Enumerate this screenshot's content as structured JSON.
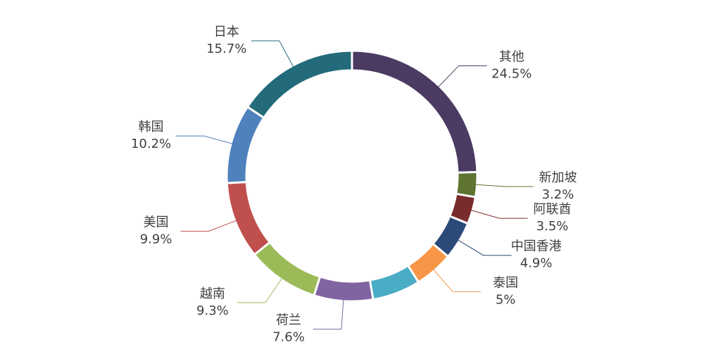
{
  "chart_data": {
    "type": "donut",
    "categories": [
      "其他",
      "新加坡",
      "阿联酋",
      "中国香港",
      "泰国",
      null,
      "荷兰",
      "越南",
      "美国",
      "韩国",
      "日本"
    ],
    "values": [
      24.5,
      3.2,
      3.5,
      4.9,
      5,
      6.2,
      7.6,
      9.3,
      9.9,
      10.2,
      15.7
    ],
    "value_labels": [
      "24.5%",
      "3.2%",
      "3.5%",
      "4.9%",
      "5%",
      null,
      "7.6%",
      "9.3%",
      "9.9%",
      "10.2%",
      "15.7%"
    ],
    "colors": [
      "#4b3a61",
      "#5f7430",
      "#7a2c2c",
      "#2b4a78",
      "#f79646",
      "#4bacc6",
      "#8064a2",
      "#9bbb59",
      "#c0504d",
      "#4f81bd",
      "#236b7a"
    ]
  }
}
